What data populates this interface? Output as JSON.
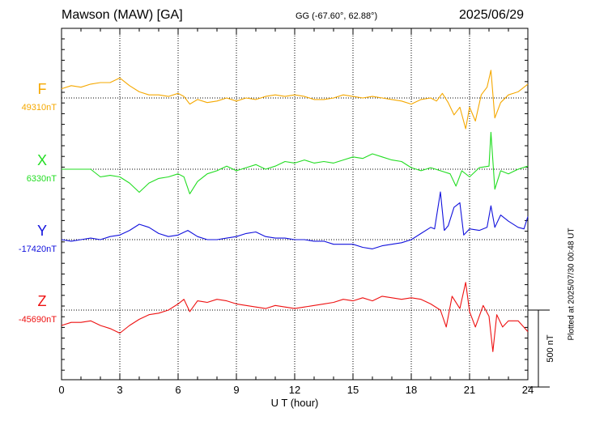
{
  "header": {
    "station": "Mawson (MAW)  [GA]",
    "coords": "GG (-67.60°,  62.88°)",
    "date": "2025/06/29"
  },
  "side_note": "Plotted at 2025/07/30 00:48 UT",
  "chart_data": {
    "type": "line",
    "xlabel": "U T (hour)",
    "xlim": [
      0,
      24
    ],
    "xticks": [
      "0",
      "3",
      "6",
      "9",
      "12",
      "15",
      "18",
      "21",
      "24"
    ],
    "scale_bar": {
      "label": "500 nT",
      "value": 500
    },
    "grid": "dotted vertical every 3 h; dotted baseline per component",
    "series": [
      {
        "name": "F",
        "baseline_label": "49310nT",
        "baseline": 49310,
        "color": "#f5a800",
        "x": [
          0,
          0.5,
          1,
          1.5,
          2,
          2.5,
          3,
          3.5,
          4,
          4.5,
          5,
          5.5,
          6,
          6.3,
          6.6,
          7,
          7.5,
          8,
          8.5,
          9,
          9.5,
          10,
          10.5,
          11,
          11.5,
          12,
          12.5,
          13,
          13.5,
          14,
          14.5,
          15,
          15.5,
          16,
          16.5,
          17,
          17.5,
          18,
          18.5,
          19,
          19.3,
          19.6,
          19.9,
          20.2,
          20.5,
          20.8,
          21,
          21.3,
          21.6,
          21.9,
          22.1,
          22.3,
          22.6,
          23,
          23.5,
          24
        ],
        "y": [
          49370,
          49390,
          49380,
          49400,
          49410,
          49410,
          49440,
          49390,
          49350,
          49330,
          49330,
          49320,
          49340,
          49320,
          49270,
          49300,
          49280,
          49290,
          49310,
          49290,
          49310,
          49300,
          49320,
          49330,
          49320,
          49330,
          49320,
          49300,
          49300,
          49310,
          49330,
          49320,
          49310,
          49320,
          49310,
          49300,
          49290,
          49270,
          49300,
          49310,
          49290,
          49340,
          49280,
          49200,
          49250,
          49110,
          49250,
          49160,
          49330,
          49380,
          49490,
          49180,
          49280,
          49330,
          49350,
          49400
        ]
      },
      {
        "name": "X",
        "baseline_label": "6330nT",
        "baseline": 6330,
        "color": "#22dd22",
        "x": [
          0,
          1,
          1.5,
          2,
          2.5,
          3,
          3.5,
          4,
          4.5,
          5,
          5.5,
          6,
          6.3,
          6.6,
          7,
          7.5,
          8,
          8.5,
          9,
          9.5,
          10,
          10.5,
          11,
          11.5,
          12,
          12.5,
          13,
          13.5,
          14,
          14.5,
          15,
          15.5,
          16,
          16.5,
          17,
          17.5,
          18,
          18.5,
          19,
          19.5,
          20,
          20.3,
          20.6,
          21,
          21.5,
          22,
          22.1,
          22.3,
          22.6,
          23,
          23.5,
          24
        ],
        "y": [
          6330,
          6330,
          6330,
          6280,
          6290,
          6280,
          6240,
          6180,
          6240,
          6270,
          6280,
          6300,
          6280,
          6170,
          6250,
          6300,
          6320,
          6350,
          6320,
          6340,
          6360,
          6330,
          6350,
          6380,
          6370,
          6390,
          6370,
          6380,
          6370,
          6390,
          6410,
          6400,
          6430,
          6410,
          6390,
          6380,
          6340,
          6320,
          6340,
          6320,
          6300,
          6220,
          6320,
          6280,
          6340,
          6350,
          6570,
          6200,
          6320,
          6300,
          6330,
          6350
        ]
      },
      {
        "name": "Y",
        "baseline_label": "-17420nT",
        "baseline": -17420,
        "color": "#1111dd",
        "x": [
          0,
          0.5,
          1,
          1.5,
          2,
          2.5,
          3,
          3.5,
          4,
          4.5,
          5,
          5.5,
          6,
          6.5,
          7,
          7.5,
          8,
          8.5,
          9,
          9.5,
          10,
          10.5,
          11,
          11.5,
          12,
          12.5,
          13,
          13.5,
          14,
          14.5,
          15,
          15.5,
          16,
          16.5,
          17,
          17.5,
          18,
          18.5,
          19,
          19.2,
          19.5,
          19.7,
          19.9,
          20.2,
          20.5,
          20.7,
          21,
          21.5,
          21.9,
          22.1,
          22.3,
          22.6,
          23,
          23.5,
          23.8,
          24
        ],
        "y": [
          -17420,
          -17430,
          -17420,
          -17410,
          -17420,
          -17400,
          -17390,
          -17360,
          -17320,
          -17340,
          -17380,
          -17400,
          -17390,
          -17360,
          -17400,
          -17420,
          -17420,
          -17410,
          -17400,
          -17380,
          -17370,
          -17400,
          -17410,
          -17410,
          -17420,
          -17420,
          -17430,
          -17430,
          -17450,
          -17450,
          -17450,
          -17470,
          -17480,
          -17460,
          -17450,
          -17440,
          -17420,
          -17380,
          -17340,
          -17350,
          -17110,
          -17360,
          -17330,
          -17210,
          -17180,
          -17390,
          -17350,
          -17360,
          -17340,
          -17200,
          -17340,
          -17260,
          -17300,
          -17340,
          -17350,
          -17270
        ]
      },
      {
        "name": "Z",
        "baseline_label": "-45690nT",
        "baseline": -45690,
        "color": "#ee1111",
        "x": [
          0,
          0.5,
          1,
          1.5,
          2,
          2.5,
          3,
          3.5,
          4,
          4.5,
          5,
          5.5,
          6,
          6.3,
          6.6,
          7,
          7.5,
          8,
          8.5,
          9,
          9.5,
          10,
          10.5,
          11,
          11.5,
          12,
          12.5,
          13,
          13.5,
          14,
          14.5,
          15,
          15.5,
          16,
          16.5,
          17,
          17.5,
          18,
          18.5,
          19,
          19.5,
          19.8,
          20.1,
          20.5,
          20.8,
          21,
          21.3,
          21.7,
          22,
          22.2,
          22.4,
          22.7,
          23,
          23.5,
          24
        ],
        "y": [
          -45790,
          -45770,
          -45770,
          -45760,
          -45790,
          -45810,
          -45840,
          -45790,
          -45750,
          -45720,
          -45710,
          -45690,
          -45650,
          -45620,
          -45700,
          -45630,
          -45640,
          -45620,
          -45630,
          -45650,
          -45660,
          -45670,
          -45680,
          -45660,
          -45670,
          -45680,
          -45670,
          -45660,
          -45650,
          -45640,
          -45620,
          -45630,
          -45610,
          -45630,
          -45600,
          -45610,
          -45620,
          -45610,
          -45620,
          -45650,
          -45690,
          -45800,
          -45600,
          -45680,
          -45510,
          -45700,
          -45800,
          -45660,
          -45730,
          -45960,
          -45720,
          -45800,
          -45760,
          -45760,
          -45830
        ]
      }
    ]
  }
}
